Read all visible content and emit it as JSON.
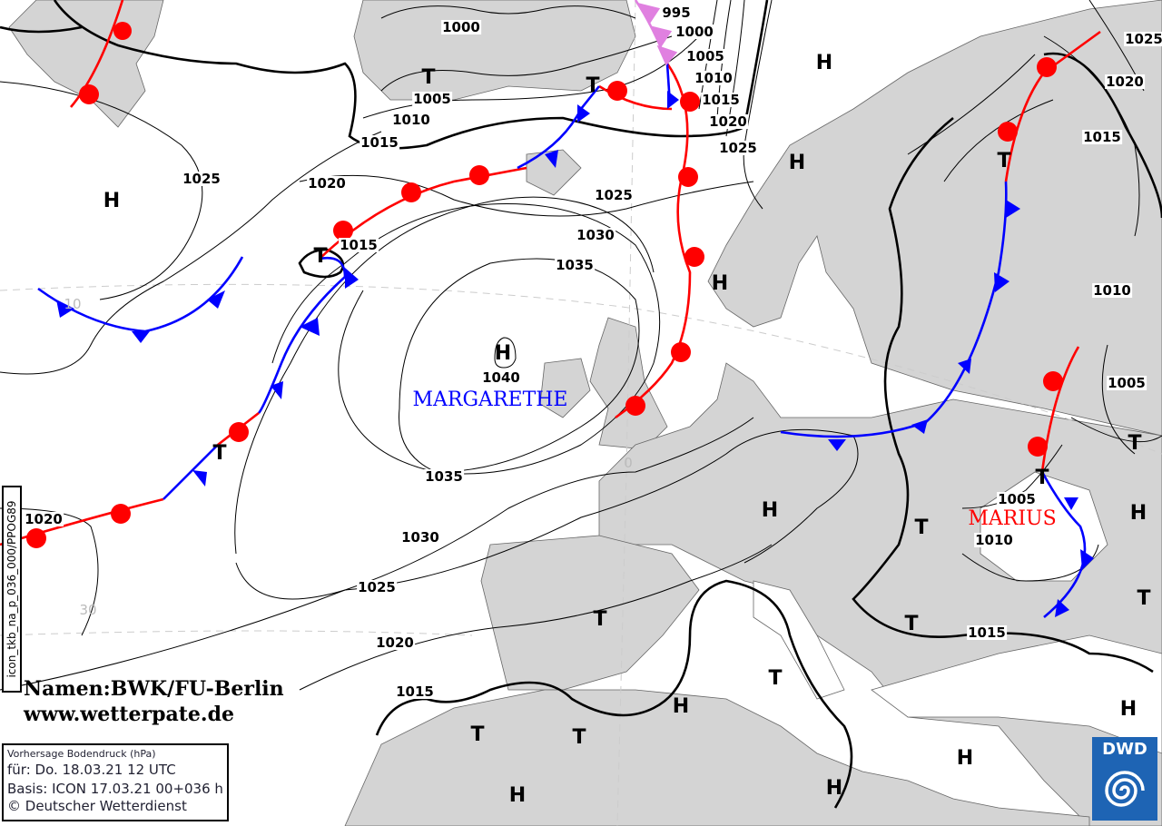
{
  "map": {
    "colors": {
      "land": "#d4d4d4",
      "sea": "#ffffff",
      "warm_front": "#ff0000",
      "cold_front": "#0000ff",
      "occlusion": "#e080e0",
      "isobar": "#000000"
    },
    "isobar_labels": [
      "1000",
      "995",
      "1000",
      "1005",
      "1010",
      "1015",
      "1020",
      "1025",
      "1005",
      "1010",
      "1015",
      "1025",
      "1020",
      "1015",
      "1025",
      "1030",
      "1035",
      "1040",
      "1035",
      "1030",
      "1025",
      "1020",
      "1015",
      "1020",
      "1025",
      "1020",
      "1015",
      "1010",
      "1005",
      "1005",
      "1010",
      "1015"
    ],
    "high_label": "H",
    "low_label": "T",
    "high_count": 12,
    "low_count": 14,
    "grid_labels": [
      "10",
      "0",
      "30"
    ],
    "pressure_systems": [
      {
        "name": "MARGARETHE",
        "color": "#0000ff"
      },
      {
        "name": "MARIUS",
        "color": "#ff0000"
      }
    ]
  },
  "credits": {
    "line1": "Namen:BWK/FU-Berlin",
    "line2": "www.wetterpate.de"
  },
  "info": {
    "title": "Vorhersage Bodendruck (hPa)",
    "valid": "für:  Do. 18.03.21  12 UTC",
    "basis": "Basis: ICON  17.03.21 00+036 h",
    "copyright": "© Deutscher Wetterdienst"
  },
  "product_code": "icon_tkb_na_p_036_000/PPOG89",
  "logo": {
    "text": "DWD"
  }
}
